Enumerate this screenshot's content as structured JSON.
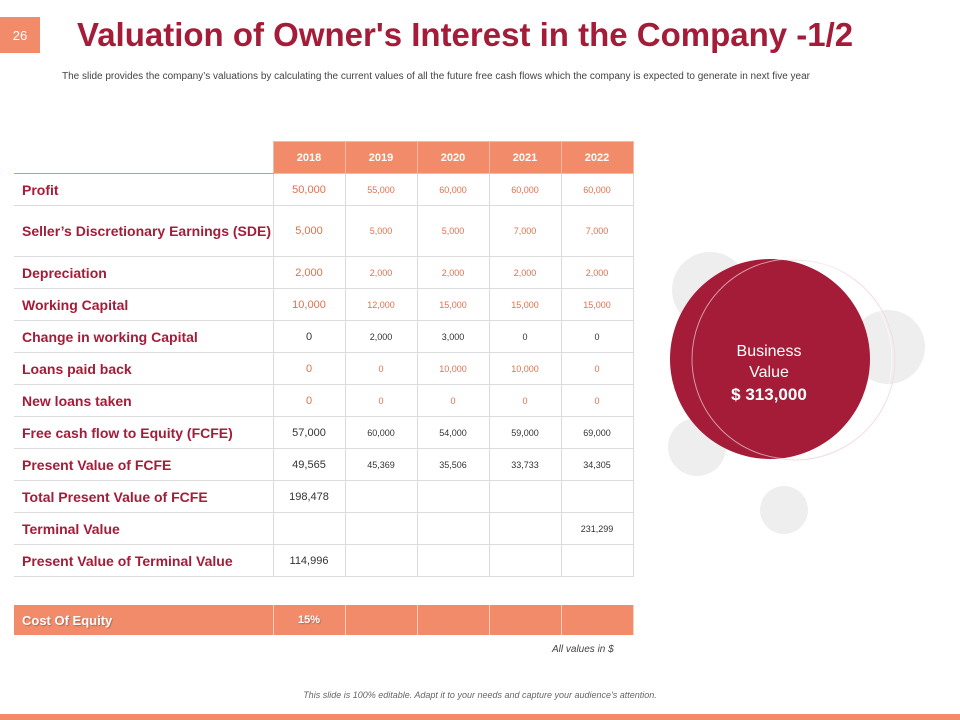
{
  "slide_number": "26",
  "title": "Valuation of Owner's Interest in the Company -1/2",
  "subtitle": "The slide provides the company’s valuations by calculating the current values of all the future free cash flows which the company is expected to generate in next five year",
  "table": {
    "years": [
      "2018",
      "2019",
      "2020",
      "2021",
      "2022"
    ],
    "rows": [
      {
        "label": "Profit",
        "values": [
          "50,000",
          "55,000",
          "60,000",
          "60,000",
          "60,000"
        ],
        "tone": "orange"
      },
      {
        "label": "Seller’s Discretionary Earnings (SDE)",
        "values": [
          "5,000",
          "5,000",
          "5,000",
          "7,000",
          "7,000"
        ],
        "tone": "orange"
      },
      {
        "label": "Depreciation",
        "values": [
          "2,000",
          "2,000",
          "2,000",
          "2,000",
          "2,000"
        ],
        "tone": "orange"
      },
      {
        "label": "Working Capital",
        "values": [
          "10,000",
          "12,000",
          "15,000",
          "15,000",
          "15,000"
        ],
        "tone": "orange"
      },
      {
        "label": "Change in working Capital",
        "values": [
          "0",
          "2,000",
          "3,000",
          "0",
          "0"
        ],
        "tone": "dark"
      },
      {
        "label": "Loans paid back",
        "values": [
          "0",
          "0",
          "10,000",
          "10,000",
          "0"
        ],
        "tone": "orange"
      },
      {
        "label": "New loans taken",
        "values": [
          "0",
          "0",
          "0",
          "0",
          "0"
        ],
        "tone": "orange"
      },
      {
        "label": "Free cash flow to Equity (FCFE)",
        "values": [
          "57,000",
          "60,000",
          "54,000",
          "59,000",
          "69,000"
        ],
        "tone": "dark"
      },
      {
        "label": "Present Value of FCFE",
        "values": [
          "49,565",
          "45,369",
          "35,506",
          "33,733",
          "34,305"
        ],
        "tone": "dark"
      },
      {
        "label": "Total Present Value of FCFE",
        "values": [
          "198,478",
          "",
          "",
          "",
          ""
        ],
        "tone": "dark"
      },
      {
        "label": "Terminal Value",
        "values": [
          "",
          "",
          "",
          "",
          "231,299"
        ],
        "tone": "dark"
      },
      {
        "label": "Present Value of Terminal Value",
        "values": [
          "114,996",
          "",
          "",
          "",
          ""
        ],
        "tone": "dark"
      }
    ]
  },
  "cost_of_equity": {
    "label": "Cost Of Equity",
    "value": "15%"
  },
  "units_note": "All values in $",
  "business_value": {
    "line1": "Business",
    "line2": "Value",
    "amount": "$ 313,000"
  },
  "footer": "This slide is 100% editable. Adapt it to your needs and capture your audience's attention.",
  "colors": {
    "accent": "#a51c38",
    "orange": "#f28b6a",
    "light_gray": "#eeeeee"
  }
}
